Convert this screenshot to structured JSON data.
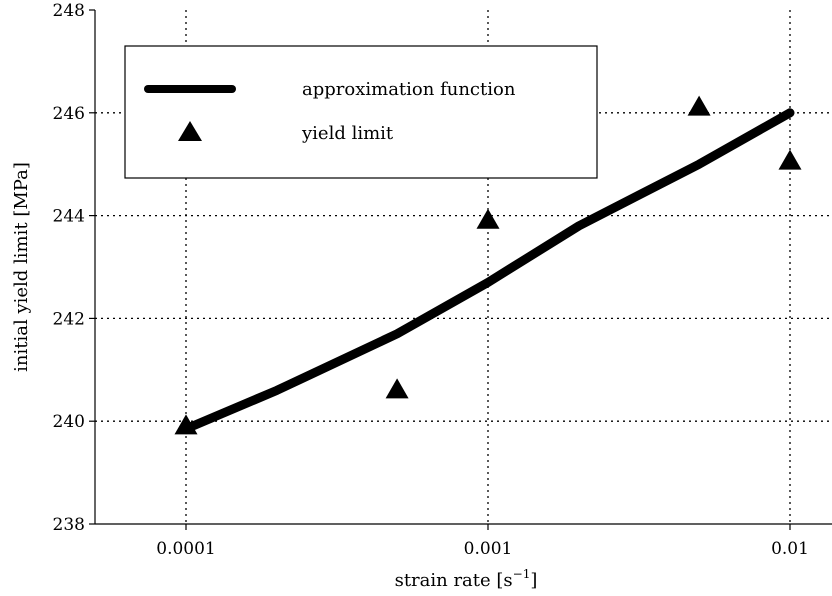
{
  "chart_data": {
    "type": "line",
    "xlabel": "strain rate [s",
    "xlabel_sup": "−1",
    "xlabel_end": "]",
    "ylabel": "initial yield limit [MPa]",
    "x_scale": "log",
    "xlim": [
      0.0001,
      0.01
    ],
    "ylim": [
      238,
      248
    ],
    "x_ticks": [
      0.0001,
      0.001,
      0.01
    ],
    "x_tick_labels": [
      "0.0001",
      "0.001",
      "0.01"
    ],
    "y_ticks": [
      238,
      240,
      242,
      244,
      246,
      248
    ],
    "y_tick_labels": [
      "238",
      "240",
      "242",
      "244",
      "246",
      "248"
    ],
    "grid": "dotted",
    "legend_position": "top-left",
    "series": [
      {
        "name": "approximation function",
        "style": "line",
        "color": "#000000",
        "x": [
          0.0001,
          0.0002,
          0.0005,
          0.001,
          0.002,
          0.005,
          0.01
        ],
        "y": [
          239.85,
          240.6,
          241.7,
          242.7,
          243.8,
          245.0,
          246.0
        ]
      },
      {
        "name": "yield limit",
        "style": "marker-triangle",
        "color": "#000000",
        "x": [
          0.0001,
          0.0005,
          0.001,
          0.005,
          0.01
        ],
        "y": [
          239.9,
          240.6,
          243.9,
          246.1,
          245.05
        ]
      }
    ]
  }
}
